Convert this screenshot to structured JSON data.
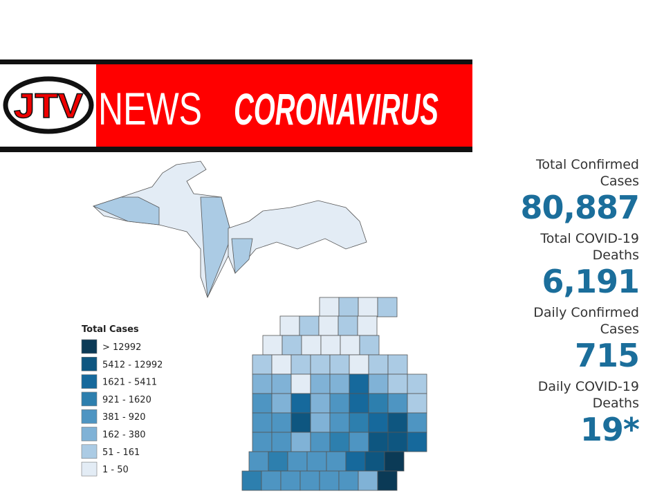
{
  "header": {
    "logo": "JTV",
    "brand": "NEWS",
    "topic": "CORONAVIRUS"
  },
  "legend": {
    "title": "Total Cases",
    "items": [
      {
        "label": "> 12992",
        "color": "#0b3a56"
      },
      {
        "label": "5412 - 12992",
        "color": "#0e5680"
      },
      {
        "label": "1621 - 5411",
        "color": "#16699c"
      },
      {
        "label": "921 - 1620",
        "color": "#2d7fae"
      },
      {
        "label": "381 - 920",
        "color": "#4e95c2"
      },
      {
        "label": "162 - 380",
        "color": "#80b2d6"
      },
      {
        "label": "51 - 161",
        "color": "#abcbe4"
      },
      {
        "label": "1 - 50",
        "color": "#e3ecf5"
      }
    ]
  },
  "stats": [
    {
      "label": "Total Confirmed Cases",
      "value": "80,887"
    },
    {
      "label": "Total COVID-19 Deaths",
      "value": "6,191"
    },
    {
      "label": "Daily Confirmed Cases",
      "value": "715"
    },
    {
      "label": "Daily COVID-19 Deaths",
      "value": "19*"
    }
  ]
}
